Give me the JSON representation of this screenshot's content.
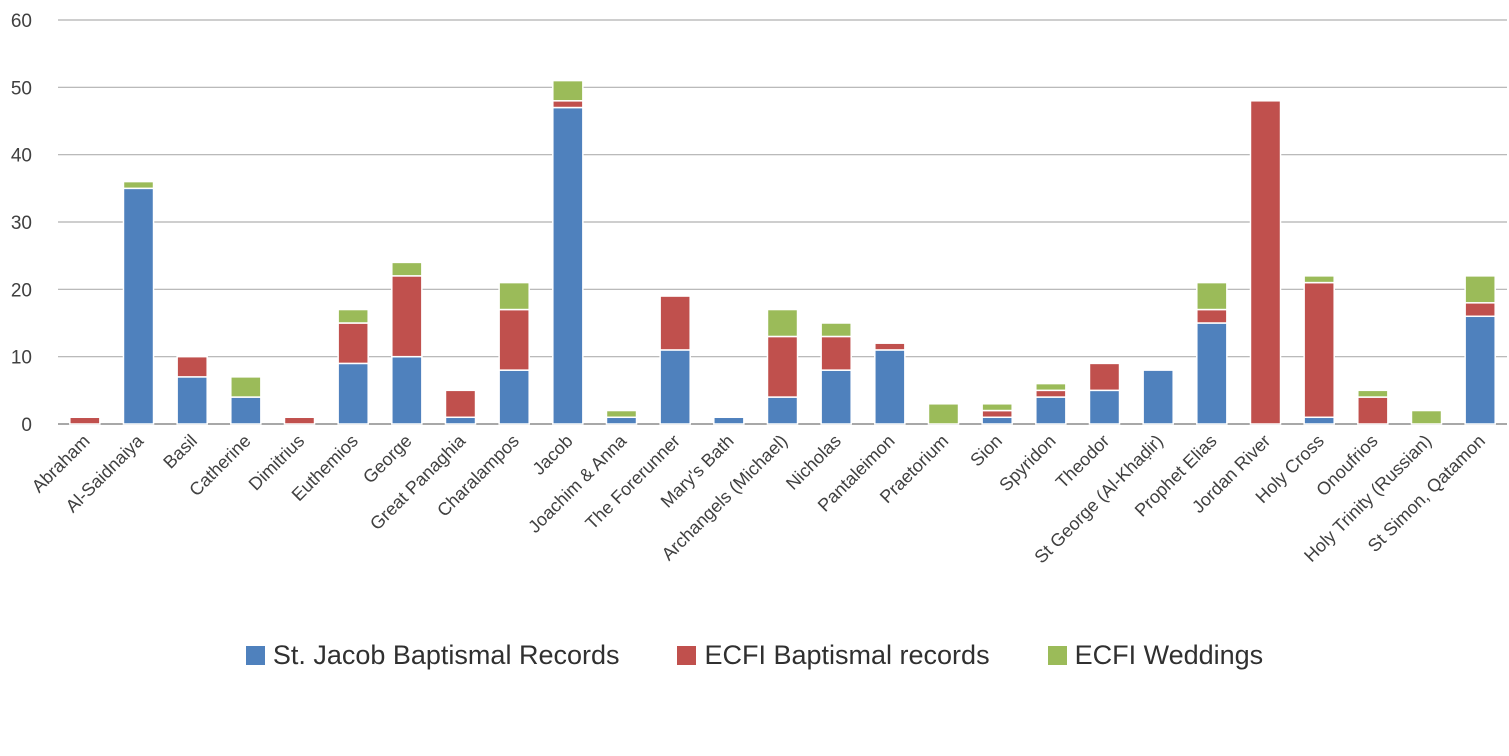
{
  "chart_data": {
    "type": "bar",
    "stacked": true,
    "ylim": [
      0,
      60
    ],
    "yticks": [
      0,
      10,
      20,
      30,
      40,
      50,
      60
    ],
    "grid": true,
    "legend_position": "bottom",
    "categories": [
      "Abraham",
      "Al-Saidnaiya",
      "Basil",
      "Catherine",
      "Dimitrius",
      "Euthemios",
      "George",
      "Great Panaghia",
      "Charalampos",
      "Jacob",
      "Joachim & Anna",
      "The Forerunner",
      "Mary's Bath",
      "Archangels (Michael)",
      "Nicholas",
      "Pantaleimon",
      "Praetorium",
      "Sion",
      "Spyridon",
      "Theodor",
      "St George (Al-Khaḍir)",
      "Prophet Elias",
      "Jordan River",
      "Holy Cross",
      "Onoufrios",
      "Holy Trinity (Russian)",
      "St Simon, Qatamon"
    ],
    "series": [
      {
        "name": "St. Jacob Baptismal Records",
        "color": "#4f81bd",
        "values": [
          0,
          35,
          7,
          4,
          0,
          9,
          10,
          1,
          8,
          47,
          1,
          11,
          1,
          4,
          8,
          11,
          0,
          1,
          4,
          5,
          8,
          15,
          0,
          1,
          0,
          0,
          16
        ]
      },
      {
        "name": "ECFI Baptismal records",
        "color": "#c0504d",
        "values": [
          1,
          0,
          3,
          0,
          1,
          6,
          12,
          4,
          9,
          1,
          0,
          8,
          0,
          9,
          5,
          1,
          0,
          1,
          1,
          4,
          0,
          2,
          48,
          20,
          4,
          0,
          2
        ]
      },
      {
        "name": "ECFI Weddings",
        "color": "#9bbb59",
        "values": [
          0,
          1,
          0,
          3,
          0,
          2,
          2,
          0,
          4,
          3,
          1,
          0,
          0,
          4,
          2,
          0,
          3,
          1,
          1,
          0,
          0,
          4,
          0,
          1,
          1,
          2,
          4
        ]
      }
    ]
  }
}
